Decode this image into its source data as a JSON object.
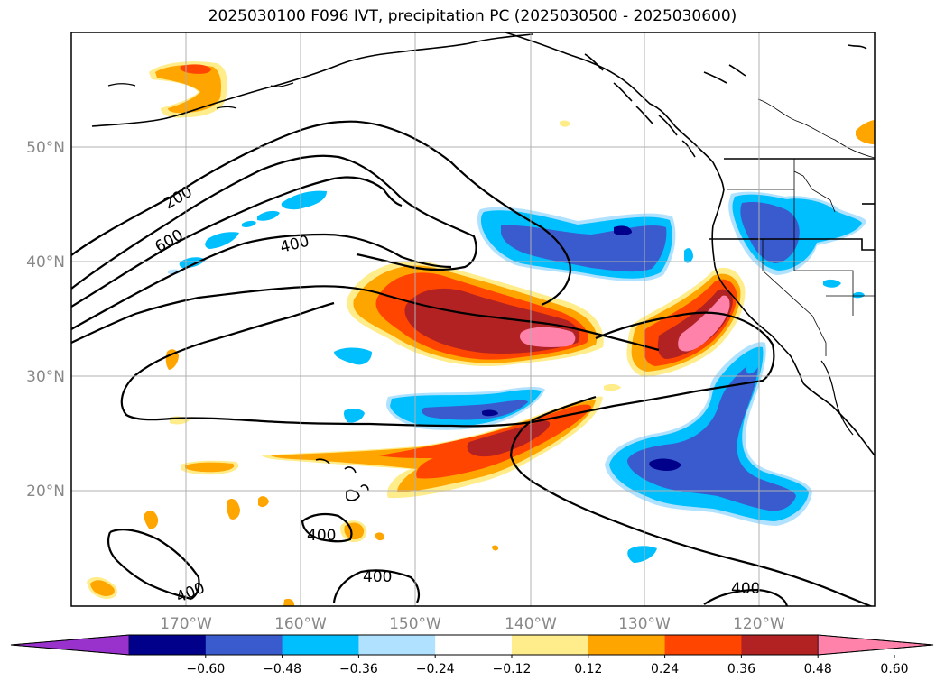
{
  "title": "2025030100 F096 IVT, precipitation PC (2025030500 - 2025030600)",
  "lat_labels": [
    "50°N",
    "40°N",
    "30°N",
    "20°N"
  ],
  "lon_labels": [
    "170°W",
    "160°W",
    "150°W",
    "140°W",
    "130°W",
    "120°W"
  ],
  "ivt_contour_labels": [
    "200",
    "600",
    "400",
    "400",
    "400",
    "400",
    "400"
  ],
  "colorbar": {
    "tick_labels": [
      "−0.60",
      "−0.48",
      "−0.36",
      "−0.24",
      "−0.12",
      "0.12",
      "0.24",
      "0.36",
      "0.48",
      "0.60"
    ],
    "colors": [
      "#9932cc",
      "#00008b",
      "#3a5bcd",
      "#00bfff",
      "#b0e2ff",
      "#ffffff",
      "#ffec8b",
      "#ffa500",
      "#ff4500",
      "#b22222",
      "#ff82ab"
    ]
  }
}
